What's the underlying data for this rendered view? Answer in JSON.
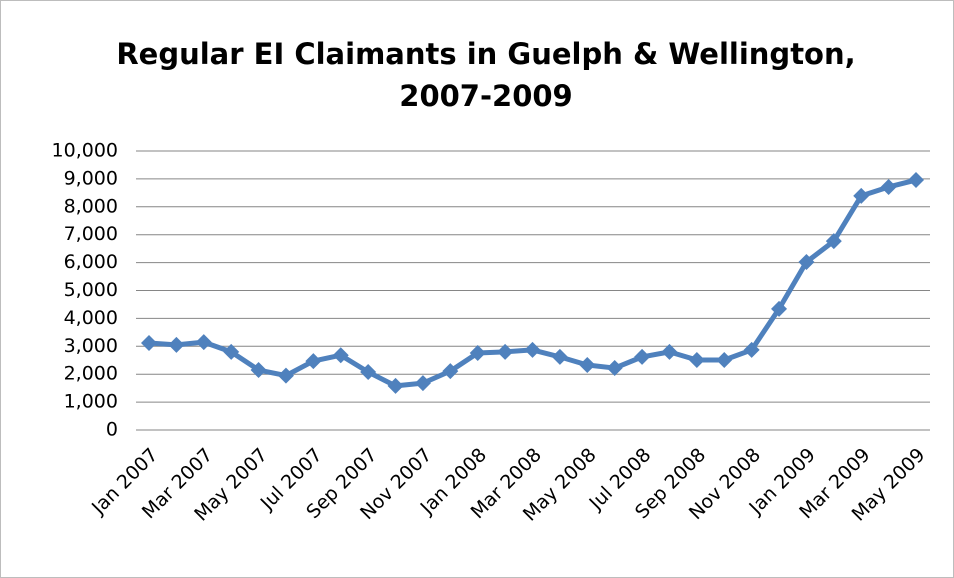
{
  "chart_data": {
    "type": "line",
    "title": "Regular EI Claimants in Guelph & Wellington, 2007-2009",
    "categories": [
      "Jan 2007",
      null,
      "Mar 2007",
      null,
      "May 2007",
      null,
      "Jul 2007",
      null,
      "Sep 2007",
      null,
      "Nov 2007",
      null,
      "Jan 2008",
      null,
      "Mar 2008",
      null,
      "May 2008",
      null,
      "Jul 2008",
      null,
      "Sep 2008",
      null,
      "Nov 2008",
      null,
      "Jan 2009",
      null,
      "Mar 2009",
      null,
      "May 2009"
    ],
    "values": [
      3120,
      3050,
      3150,
      2800,
      2150,
      1950,
      2470,
      2680,
      2080,
      1580,
      1680,
      2110,
      2760,
      2800,
      2870,
      2620,
      2330,
      2220,
      2620,
      2800,
      2510,
      2510,
      2870,
      4340,
      6020,
      6770,
      8390,
      8710,
      8960
    ],
    "color": "#4f81bd",
    "ylim": [
      0,
      10000
    ],
    "yticks": [
      0,
      {
        "value": 1000,
        "label": "1,000"
      },
      {
        "value": 2000,
        "label": "2,000"
      },
      {
        "value": 3000,
        "label": "3,000"
      },
      {
        "value": 4000,
        "label": "4,000"
      },
      {
        "value": 5000,
        "label": "5,000"
      },
      {
        "value": 6000,
        "label": "6,000"
      },
      {
        "value": 7000,
        "label": "7,000"
      },
      {
        "value": 8000,
        "label": "8,000"
      },
      {
        "value": 9000,
        "label": "9,000"
      },
      {
        "value": 10000,
        "label": "10,000"
      }
    ],
    "grid": true
  }
}
